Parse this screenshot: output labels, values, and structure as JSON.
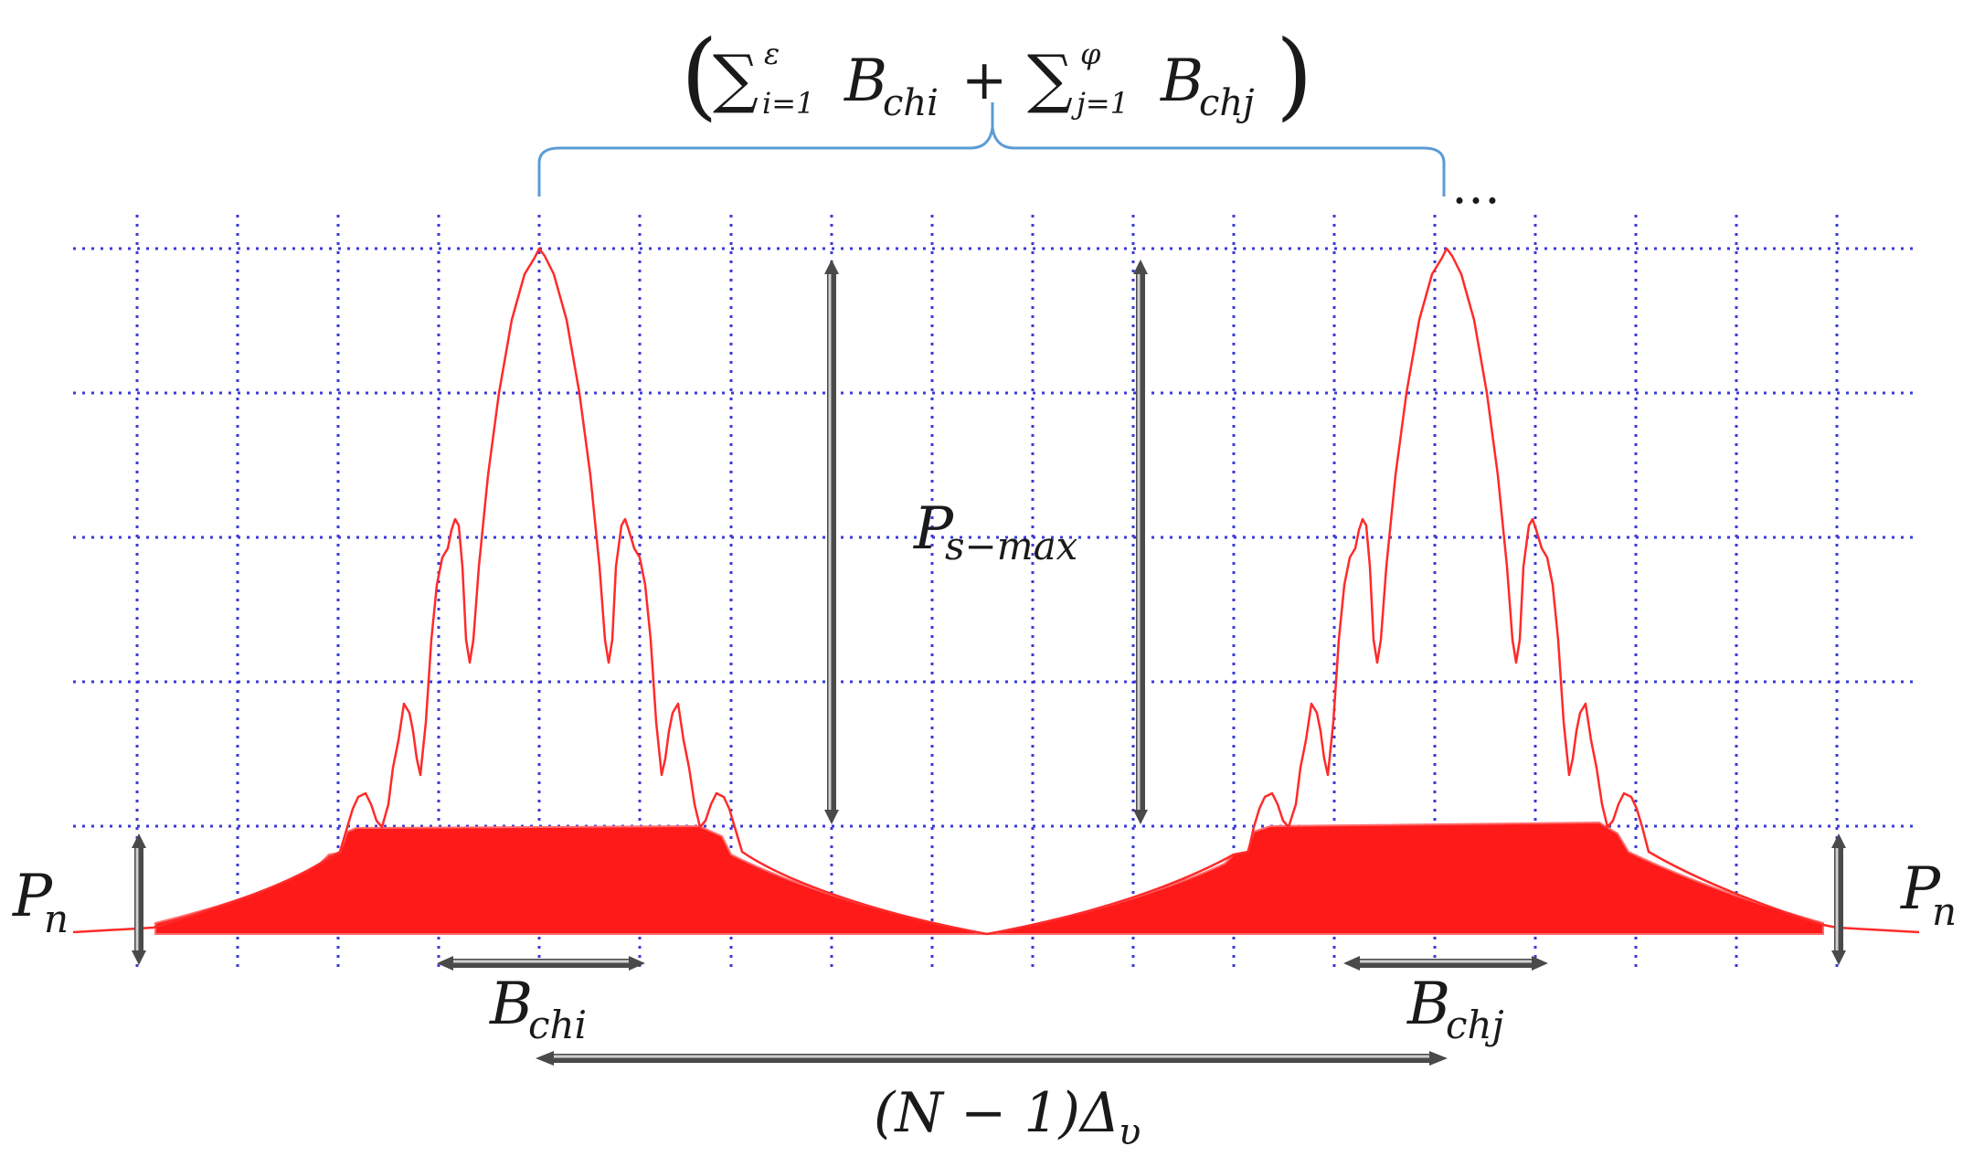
{
  "labels": {
    "top_sum_open": "(",
    "top_sum_sigma1": "∑",
    "top_sum_sup1": "ε",
    "top_sum_sub1": "i=1",
    "top_sum_term1": "B",
    "top_sum_term1_sub": "chi",
    "top_sum_plus": "+",
    "top_sum_sigma2": "∑",
    "top_sum_sup2": "φ",
    "top_sum_sub2": "j=1",
    "top_sum_term2": "B",
    "top_sum_term2_sub": "chj",
    "top_sum_close": ")",
    "ellipsis": "…",
    "ps_max": "P",
    "ps_max_sub": "s−max",
    "pn_left": "P",
    "pn_left_sub": "n",
    "pn_right": "P",
    "pn_right_sub": "n",
    "bchi": "B",
    "bchi_sub": "chi",
    "bchj": "B",
    "bchj_sub": "chj",
    "spacing_open": "(N − 1)",
    "spacing_delta": "Δ",
    "spacing_delta_sub": "υ"
  },
  "colors": {
    "spectrum": "#ff1a1a",
    "spectrum_fill": "#ff1a1a",
    "grid": "#3a3ad8",
    "brace": "#5b9bd5",
    "arrow": "#4a4a4a"
  }
}
